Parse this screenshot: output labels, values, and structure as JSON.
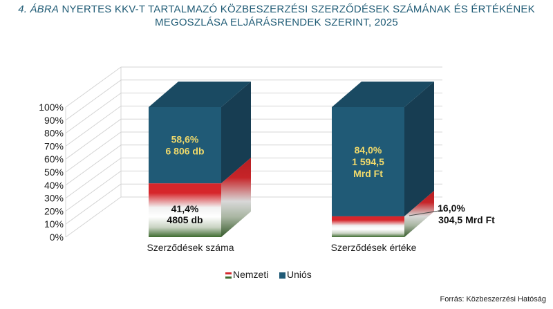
{
  "title": {
    "prefix": "4. ÁBRA",
    "line1_rest": "NYERTES KKV-T TARTALMAZÓ KÖZBESZERZÉSI SZERZŐDÉSEK SZÁMÁNAK ÉS ÉRTÉKÉNEK",
    "line2": "MEGOSZLÁSA ELJÁRÁSRENDEK SZERINT, 2025"
  },
  "source": "Forrás: Közbeszerzési  Hatóság",
  "chart_data": {
    "type": "bar",
    "stacked": true,
    "percent": true,
    "style": "3d",
    "categories": [
      "Szerződések száma",
      "Szerződések értéke"
    ],
    "ylim": [
      0,
      100
    ],
    "yticks": [
      "0%",
      "10%",
      "20%",
      "30%",
      "40%",
      "50%",
      "60%",
      "70%",
      "80%",
      "90%",
      "100%"
    ],
    "legend_position": "bottom",
    "series": [
      {
        "name": "Nemzeti",
        "values": [
          41.4,
          16.0
        ],
        "colors": [
          "#d6262b",
          "#ffffff",
          "#3e6b2f"
        ],
        "labels": [
          [
            "41,4%",
            "4805 db"
          ],
          [
            "16,0%",
            "304,5 Mrd Ft"
          ]
        ]
      },
      {
        "name": "Uniós",
        "values": [
          58.6,
          84.0
        ],
        "colors": [
          "#205a76"
        ],
        "labels": [
          [
            "58,6%",
            "6 806 db"
          ],
          [
            "84,0%",
            "1 594,5",
            "Mrd Ft"
          ]
        ]
      }
    ]
  }
}
